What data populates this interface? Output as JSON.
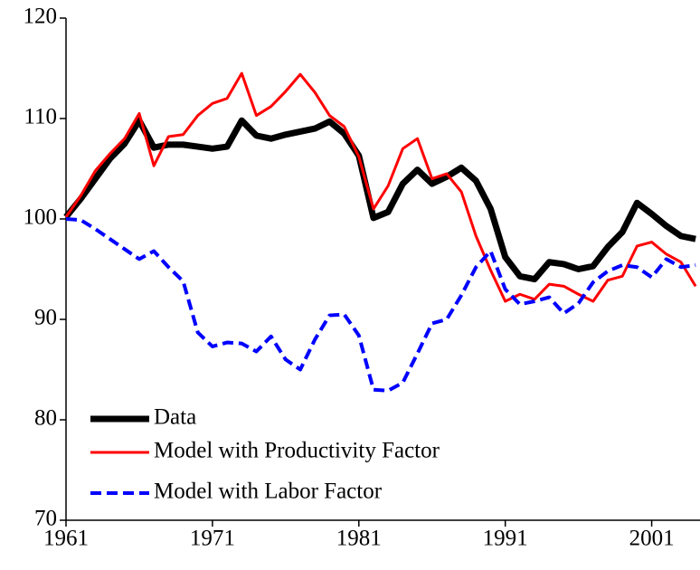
{
  "chart_data": {
    "type": "line",
    "x": [
      1961,
      1962,
      1963,
      1964,
      1965,
      1966,
      1967,
      1968,
      1969,
      1970,
      1971,
      1972,
      1973,
      1974,
      1975,
      1976,
      1977,
      1978,
      1979,
      1980,
      1981,
      1982,
      1983,
      1984,
      1985,
      1986,
      1987,
      1988,
      1989,
      1990,
      1991,
      1992,
      1993,
      1994,
      1995,
      1996,
      1997,
      1998,
      1999,
      2000,
      2001,
      2002,
      2003,
      2004
    ],
    "series": [
      {
        "name": "Data",
        "color": "#000000",
        "width": 7,
        "dash": "none",
        "values": [
          100.2,
          102,
          104,
          106,
          107.5,
          109.8,
          107.1,
          107.4,
          107.4,
          107.2,
          107.0,
          107.2,
          109.8,
          108.3,
          108.0,
          108.4,
          108.7,
          109.0,
          109.7,
          108.5,
          106.3,
          100.1,
          100.7,
          103.5,
          104.9,
          103.5,
          104.2,
          105.1,
          103.8,
          101.0,
          96.2,
          94.3,
          94.0,
          95.7,
          95.5,
          95.0,
          95.3,
          97.2,
          98.7,
          101.6,
          100.5,
          99.3,
          98.3,
          98.0
        ]
      },
      {
        "name": "Model with Productivity Factor",
        "color": "#ff0000",
        "width": 3,
        "dash": "none",
        "values": [
          100.2,
          102.3,
          104.8,
          106.5,
          108.0,
          110.5,
          105.3,
          108.2,
          108.4,
          110.3,
          111.5,
          112.0,
          114.5,
          110.3,
          111.2,
          112.7,
          114.4,
          112.6,
          110.3,
          109.2,
          106.2,
          101.0,
          103.3,
          107.0,
          108.0,
          104.0,
          104.5,
          102.7,
          98.3,
          94.9,
          91.8,
          92.5,
          92.0,
          93.5,
          93.3,
          92.5,
          91.8,
          93.9,
          94.3,
          97.3,
          97.7,
          96.5,
          95.7,
          93.3
        ]
      },
      {
        "name": "Model with Labor Factor",
        "color": "#0000ff",
        "width": 4,
        "dash": "12 6",
        "values": [
          100.0,
          99.9,
          99.0,
          98.0,
          97.0,
          96.0,
          96.8,
          95.2,
          93.8,
          88.7,
          87.3,
          87.7,
          87.6,
          86.8,
          88.3,
          86.0,
          85.0,
          88.0,
          90.4,
          90.5,
          88.4,
          83.0,
          82.9,
          83.7,
          86.6,
          89.6,
          90.0,
          92.4,
          95.2,
          96.8,
          93.0,
          91.5,
          91.8,
          92.2,
          90.6,
          91.6,
          93.7,
          94.8,
          95.4,
          95.2,
          94.2,
          96.0,
          95.2,
          95.4
        ]
      }
    ],
    "xlim": [
      1961,
      2004.3
    ],
    "xticks": [
      1961,
      1971,
      1981,
      1991,
      2001
    ],
    "ylim": [
      70,
      120
    ],
    "yticks": [
      70,
      80,
      90,
      100,
      110,
      120
    ],
    "grid": false,
    "legend": "lower-left"
  }
}
